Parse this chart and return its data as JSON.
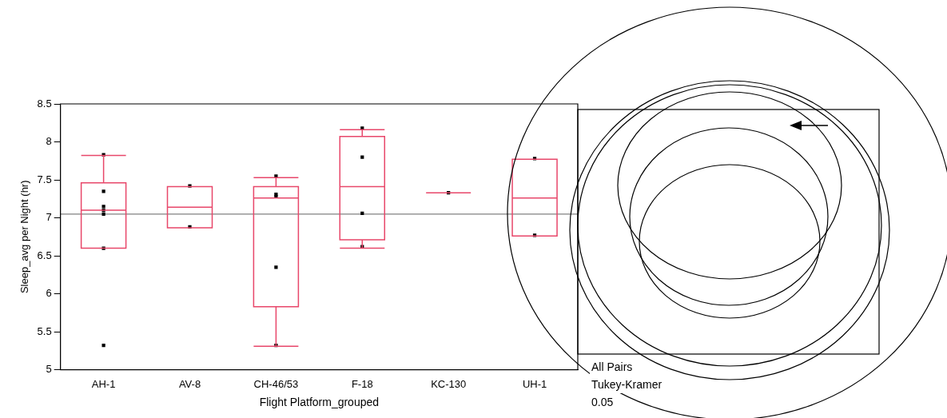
{
  "chart_data": {
    "type": "box",
    "xlabel": "Flight Platform_grouped",
    "ylabel": "Sleep_avg per Night (hr)",
    "categories": [
      "AH-1",
      "AV-8",
      "CH-46/53",
      "F-18",
      "KC-130",
      "UH-1"
    ],
    "ylim": [
      5,
      8.5
    ],
    "yticks": [
      5,
      5.5,
      6,
      6.5,
      7,
      7.5,
      8,
      8.5
    ],
    "grid": false,
    "legend": false,
    "marker": "square",
    "series": [
      {
        "type": "box",
        "color": "#e8476a",
        "boxes": [
          {
            "low": 6.6,
            "q1": 6.6,
            "median": 7.1,
            "q3": 7.46,
            "high": 7.82
          },
          {
            "low": 6.87,
            "q1": 6.87,
            "median": 7.14,
            "q3": 7.41,
            "high": 7.41
          },
          {
            "low": 5.31,
            "q1": 5.83,
            "median": 7.26,
            "q3": 7.41,
            "high": 7.53
          },
          {
            "low": 6.6,
            "q1": 6.71,
            "median": 7.41,
            "q3": 8.07,
            "high": 8.16
          },
          {
            "low": 7.33,
            "q1": 7.33,
            "median": 7.33,
            "q3": 7.33,
            "high": 7.33
          },
          {
            "low": 6.76,
            "q1": 6.76,
            "median": 7.26,
            "q3": 7.77,
            "high": 7.77
          }
        ]
      },
      {
        "type": "scatter",
        "color": "#000000",
        "x": [
          "AH-1",
          "AH-1",
          "AH-1",
          "AH-1",
          "AH-1",
          "AH-1",
          "AH-1",
          "AV-8",
          "AV-8",
          "CH-46/53",
          "CH-46/53",
          "CH-46/53",
          "CH-46/53",
          "CH-46/53",
          "F-18",
          "F-18",
          "F-18",
          "F-18",
          "KC-130",
          "UH-1",
          "UH-1"
        ],
        "values": [
          7.83,
          7.35,
          7.15,
          7.1,
          7.05,
          6.6,
          5.32,
          7.42,
          6.88,
          7.55,
          7.31,
          7.28,
          6.35,
          5.32,
          8.18,
          7.8,
          7.06,
          6.62,
          7.33,
          7.78,
          6.77
        ]
      }
    ],
    "ref_lines": [
      {
        "axis": "y",
        "value": 7.05,
        "color": "#808080"
      }
    ],
    "annotations": [
      "All Pairs",
      "Tukey-Kramer",
      "0.05"
    ]
  }
}
